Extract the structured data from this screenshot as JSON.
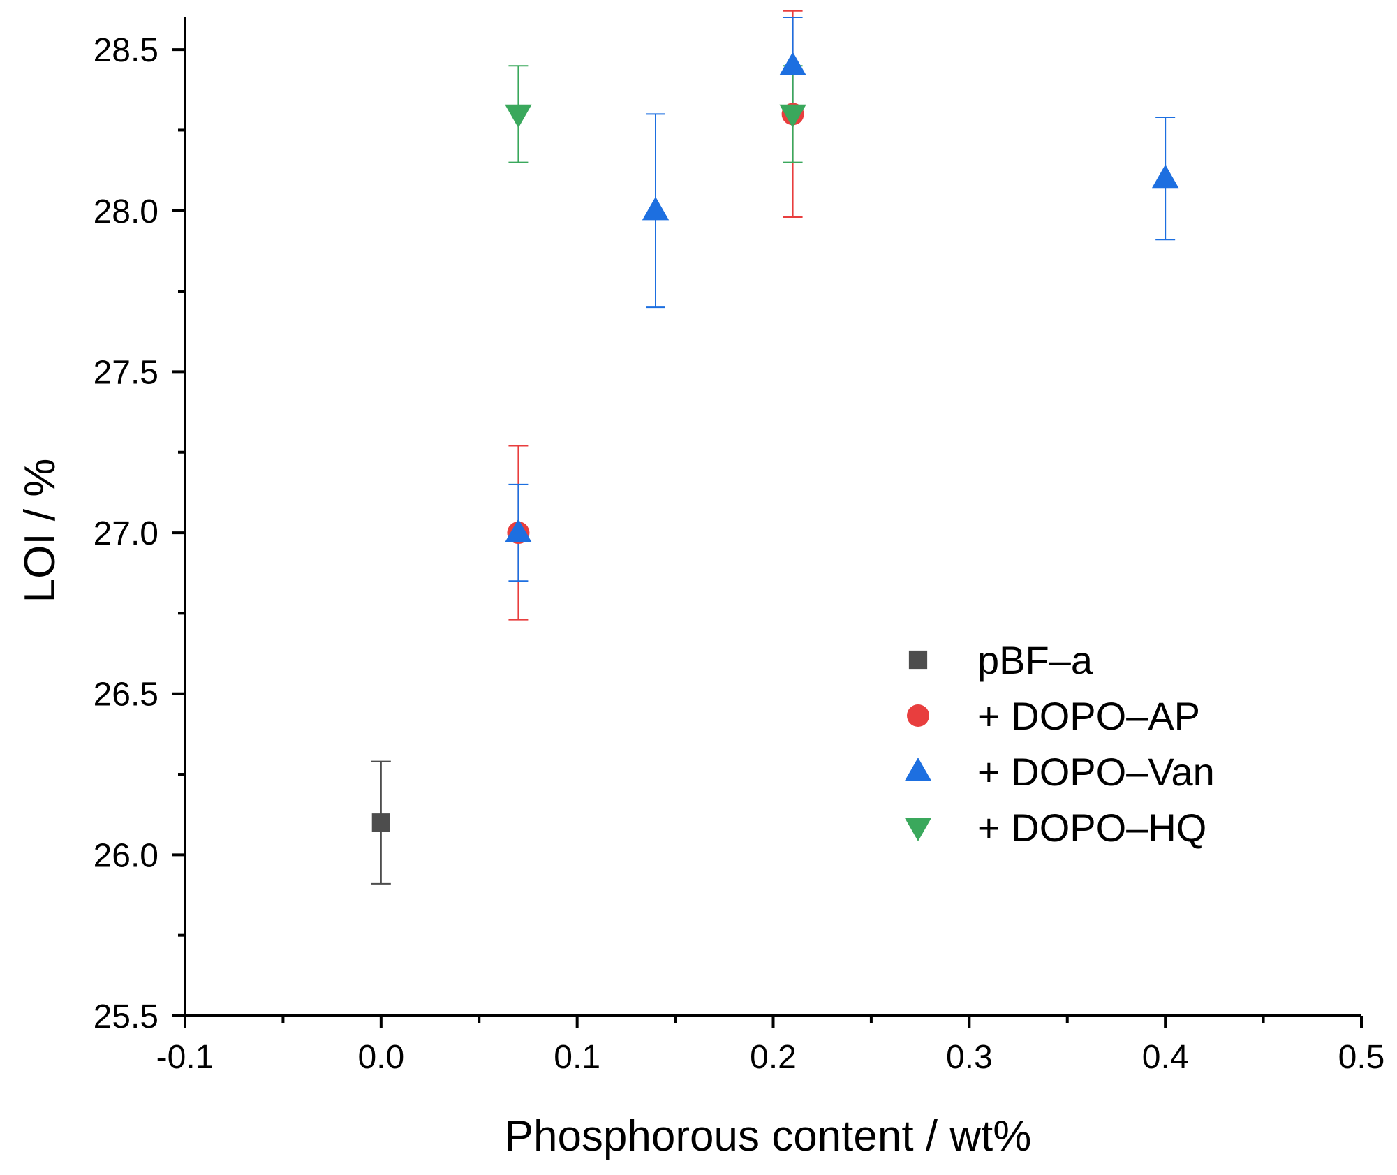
{
  "chart_data": {
    "type": "scatter",
    "title": "",
    "xlabel": "Phosphorous content / wt%",
    "ylabel": "LOI / %",
    "xlim": [
      -0.1,
      0.5
    ],
    "ylim": [
      25.5,
      28.6
    ],
    "x_ticks": [
      -0.1,
      0.0,
      0.1,
      0.2,
      0.3,
      0.4,
      0.5
    ],
    "x_tick_labels": [
      "-0.1",
      "0.0",
      "0.1",
      "0.2",
      "0.3",
      "0.4",
      "0.5"
    ],
    "y_ticks": [
      25.5,
      26.0,
      26.5,
      27.0,
      27.5,
      28.0,
      28.5
    ],
    "y_tick_labels": [
      "25.5",
      "26.0",
      "26.5",
      "27.0",
      "27.5",
      "28.0",
      "28.5"
    ],
    "grid": false,
    "legend_position": "center-right",
    "series": [
      {
        "name": "pBF–a",
        "marker": "square",
        "color": "#4d4d4d",
        "points": [
          {
            "x": 0.0,
            "y": 26.1,
            "err": 0.19
          }
        ]
      },
      {
        "name": "+ DOPO–AP",
        "marker": "circle",
        "color": "#e83e3e",
        "points": [
          {
            "x": 0.07,
            "y": 27.0,
            "err": 0.27
          },
          {
            "x": 0.21,
            "y": 28.3,
            "err": 0.32
          }
        ]
      },
      {
        "name": "+ DOPO–Van",
        "marker": "triangle-up",
        "color": "#1d6fe0",
        "points": [
          {
            "x": 0.07,
            "y": 27.0,
            "err": 0.15
          },
          {
            "x": 0.14,
            "y": 28.0,
            "err": 0.3
          },
          {
            "x": 0.21,
            "y": 28.45,
            "err": 0.15
          },
          {
            "x": 0.4,
            "y": 28.1,
            "err": 0.19
          }
        ]
      },
      {
        "name": "+ DOPO–HQ",
        "marker": "triangle-down",
        "color": "#3aa85c",
        "points": [
          {
            "x": 0.07,
            "y": 28.3,
            "err": 0.15
          },
          {
            "x": 0.21,
            "y": 28.3,
            "err": 0.15
          }
        ]
      }
    ]
  }
}
